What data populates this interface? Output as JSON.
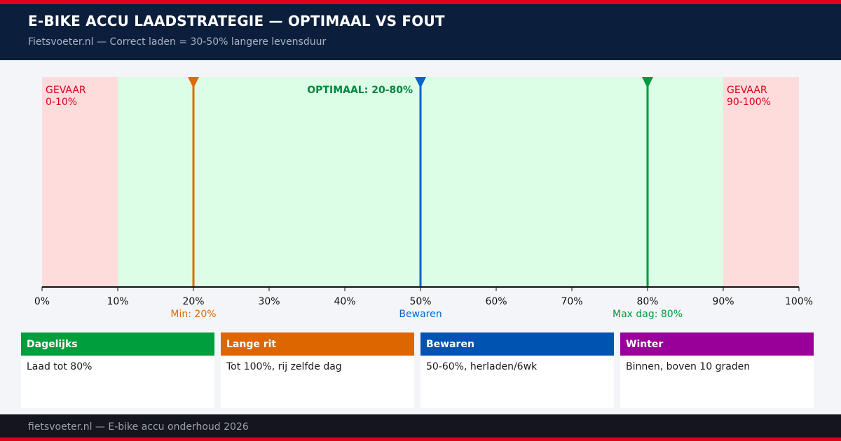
{
  "header": {
    "title": "E-BIKE ACCU LAADSTRATEGIE — OPTIMAAL VS FOUT",
    "subtitle": "Fietsvoeter.nl — Correct laden = 30-50% langere levensduur"
  },
  "chart_data": {
    "type": "range_scale",
    "xlim": [
      0,
      100
    ],
    "unit": "%",
    "ticks": [
      0,
      10,
      20,
      30,
      40,
      50,
      60,
      70,
      80,
      90,
      100
    ],
    "tick_labels": [
      "0%",
      "10%",
      "20%",
      "30%",
      "40%",
      "50%",
      "60%",
      "70%",
      "80%",
      "90%",
      "100%"
    ],
    "zones": [
      {
        "name": "danger-low",
        "from": 0,
        "to": 10,
        "label_top": "GEVAAR",
        "label_bottom": "0-10%",
        "fill": "#ffdcdc",
        "text_color": "#d6001c"
      },
      {
        "name": "optimal",
        "from": 10,
        "to": 90,
        "label": "OPTIMAAL: 20-80%",
        "fill": "#dcfde6",
        "text_color": "#00873e"
      },
      {
        "name": "danger-high",
        "from": 90,
        "to": 100,
        "label_top": "GEVAAR",
        "label_bottom": "90-100%",
        "fill": "#ffdcdc",
        "text_color": "#d6001c"
      }
    ],
    "markers": [
      {
        "value": 20,
        "label": "Min: 20%",
        "color": "#e06a00"
      },
      {
        "value": 50,
        "label": "Bewaren",
        "color": "#0066cc"
      },
      {
        "value": 80,
        "label": "Max dag: 80%",
        "color": "#009a3e"
      }
    ]
  },
  "cards": [
    {
      "title": "Dagelijks",
      "text": "Laad tot 80%",
      "color": "#009e3d"
    },
    {
      "title": "Lange rit",
      "text": "Tot 100%, rij zelfde dag",
      "color": "#dd6600"
    },
    {
      "title": "Bewaren",
      "text": "50-60%, herladen/6wk",
      "color": "#0053b0"
    },
    {
      "title": "Winter",
      "text": "Binnen, boven 10 graden",
      "color": "#990099"
    }
  ],
  "footer": {
    "text": "fietsvoeter.nl — E-bike accu onderhoud 2026"
  }
}
